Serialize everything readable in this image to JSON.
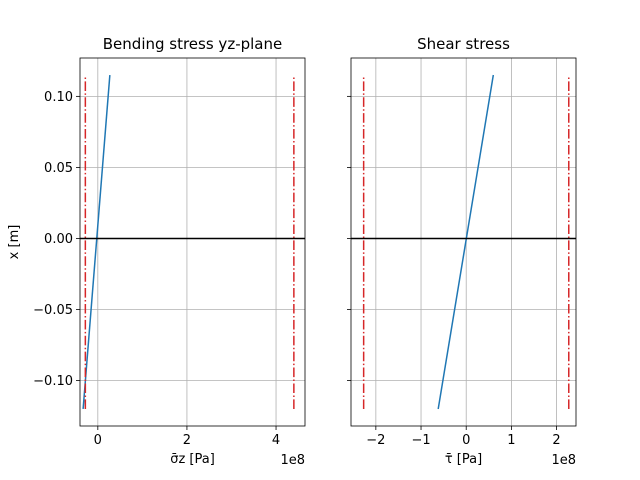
{
  "chart_data": [
    {
      "type": "line",
      "title": "Bending stress yz-plane",
      "xlabel": "σ̄z [Pa]",
      "ylabel": "x [m]",
      "x_offset_label": "1e8",
      "xlim": [
        -0.4,
        4.65
      ],
      "ylim": [
        -0.132,
        0.127
      ],
      "grid": true,
      "xticks": [
        0,
        2,
        4
      ],
      "xtick_labels": [
        "0",
        "2",
        "4"
      ],
      "yticks": [
        0.1,
        0.05,
        0.0,
        -0.05,
        -0.1
      ],
      "ytick_labels": [
        "0.10",
        "0.05",
        "0.00",
        "−0.05",
        "−0.10"
      ],
      "series": [
        {
          "color": "#1f77b4",
          "style": "solid",
          "points": [
            [
              -0.33,
              -0.12
            ],
            [
              0.27,
              0.115
            ]
          ]
        },
        {
          "color": "#d62728",
          "style": "dashdot",
          "points": [
            [
              -0.28,
              -0.12
            ],
            [
              -0.28,
              0.115
            ]
          ]
        },
        {
          "color": "#d62728",
          "style": "dashdot",
          "points": [
            [
              4.4,
              -0.12
            ],
            [
              4.4,
              0.115
            ]
          ]
        },
        {
          "color": "#000000",
          "style": "solid",
          "points": [
            [
              -0.4,
              0.0
            ],
            [
              4.65,
              0.0
            ]
          ]
        }
      ]
    },
    {
      "type": "line",
      "title": "Shear stress",
      "xlabel": "τ̄ [Pa]",
      "ylabel": "",
      "x_offset_label": "1e8",
      "xlim": [
        -2.55,
        2.43
      ],
      "ylim": [
        -0.132,
        0.127
      ],
      "grid": true,
      "xticks": [
        -2,
        -1,
        0,
        1,
        2
      ],
      "xtick_labels": [
        "−2",
        "−1",
        "0",
        "1",
        "2"
      ],
      "yticks": [
        0.1,
        0.05,
        0.0,
        -0.05,
        -0.1
      ],
      "ytick_labels": [
        "",
        "",
        "",
        "",
        ""
      ],
      "series": [
        {
          "color": "#1f77b4",
          "style": "solid",
          "points": [
            [
              -0.62,
              -0.12
            ],
            [
              0.6,
              0.115
            ]
          ]
        },
        {
          "color": "#d62728",
          "style": "dashdot",
          "points": [
            [
              -2.27,
              -0.12
            ],
            [
              -2.27,
              0.115
            ]
          ]
        },
        {
          "color": "#d62728",
          "style": "dashdot",
          "points": [
            [
              2.27,
              -0.12
            ],
            [
              2.27,
              0.115
            ]
          ]
        },
        {
          "color": "#000000",
          "style": "solid",
          "points": [
            [
              -2.55,
              0.0
            ],
            [
              2.43,
              0.0
            ]
          ]
        }
      ]
    }
  ]
}
